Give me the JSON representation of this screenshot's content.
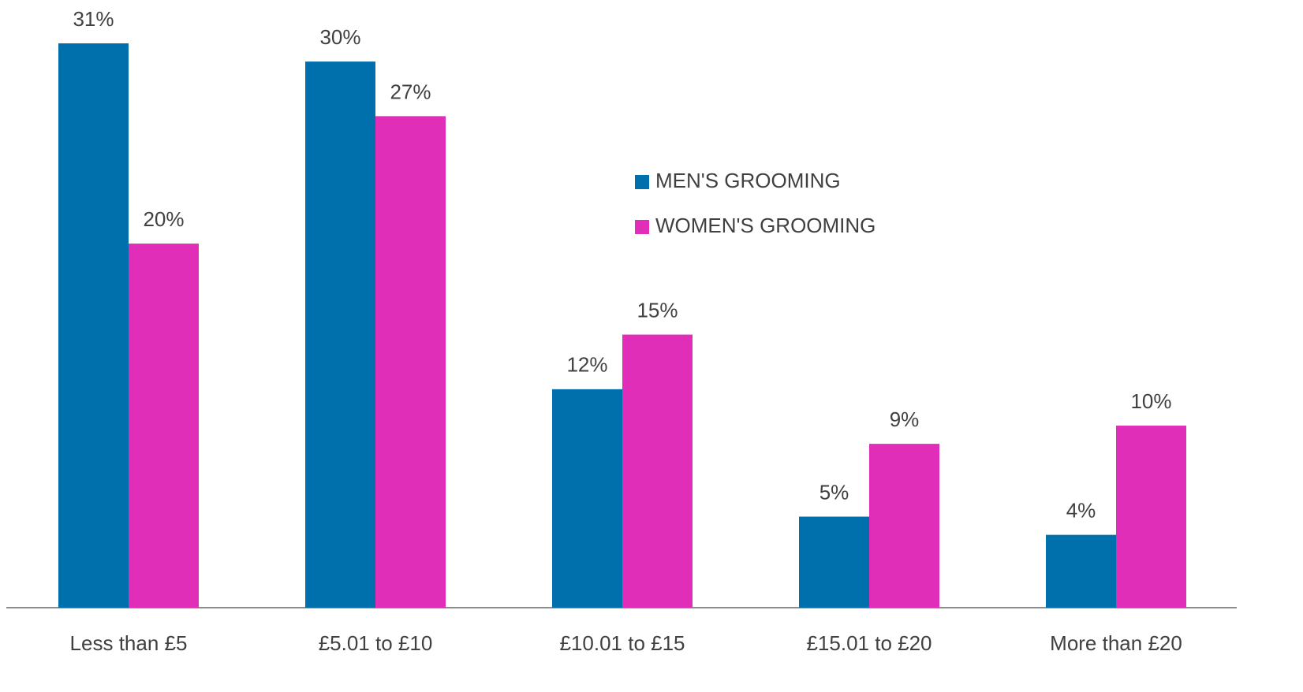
{
  "chart_data": {
    "type": "bar",
    "categories": [
      "Less than £5",
      "£5.01 to £10",
      "£10.01 to £15",
      "£15.01 to £20",
      "More than £20"
    ],
    "series": [
      {
        "name": "MEN'S GROOMING",
        "color": "#0070ad",
        "values": [
          31,
          30,
          12,
          5,
          4
        ],
        "value_labels": [
          "31%",
          "30%",
          "12%",
          "5%",
          "4%"
        ]
      },
      {
        "name": "WOMEN'S GROOMING",
        "color": "#e02eb8",
        "values": [
          20,
          27,
          15,
          9,
          10
        ],
        "value_labels": [
          "20%",
          "27%",
          "15%",
          "9%",
          "10%"
        ]
      }
    ],
    "legend": "center"
  }
}
